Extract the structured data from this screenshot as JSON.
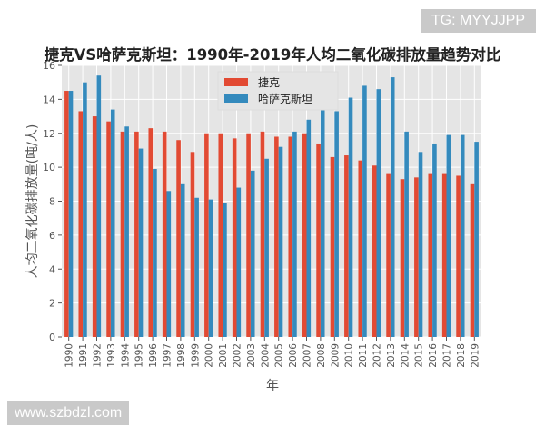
{
  "watermarks": {
    "top": "TG: MYYJJPP",
    "bottom": "www.szbdzl.com"
  },
  "colors": {
    "czech": "#E24A33",
    "kazakhstan": "#348ABD",
    "plot_bg": "#E5E5E5",
    "grid": "#FFFFFF"
  },
  "chart_data": {
    "type": "bar",
    "title": "捷克VS哈萨克斯坦：1990年-2019年人均二氧化碳排放量趋势对比",
    "xlabel": "年",
    "ylabel": "人均二氧化碳排放量(吨/人)",
    "ylim": [
      0,
      16
    ],
    "yticks": [
      0,
      2,
      4,
      6,
      8,
      10,
      12,
      14,
      16
    ],
    "grid": true,
    "legend": "top-center",
    "categories": [
      "1990",
      "1991",
      "1992",
      "1993",
      "1994",
      "1995",
      "1996",
      "1997",
      "1998",
      "1999",
      "2000",
      "2001",
      "2002",
      "2003",
      "2004",
      "2005",
      "2006",
      "2007",
      "2008",
      "2009",
      "2010",
      "2011",
      "2012",
      "2013",
      "2014",
      "2015",
      "2016",
      "2017",
      "2018",
      "2019"
    ],
    "series": [
      {
        "name": "捷克",
        "values": [
          14.5,
          13.3,
          13.0,
          12.7,
          12.1,
          12.1,
          12.3,
          12.1,
          11.6,
          10.9,
          12.0,
          12.0,
          11.7,
          12.0,
          12.1,
          11.8,
          11.8,
          12.0,
          11.4,
          10.6,
          10.7,
          10.4,
          10.1,
          9.6,
          9.3,
          9.4,
          9.6,
          9.6,
          9.5,
          9.0
        ]
      },
      {
        "name": "哈萨克斯坦",
        "values": [
          14.5,
          15.0,
          15.4,
          13.4,
          12.4,
          11.1,
          9.9,
          8.6,
          9.0,
          8.2,
          8.1,
          7.9,
          8.8,
          9.8,
          10.5,
          11.2,
          12.1,
          12.8,
          13.5,
          13.3,
          14.1,
          14.8,
          14.6,
          15.3,
          12.1,
          10.9,
          11.4,
          11.9,
          11.9,
          11.5
        ]
      }
    ]
  }
}
